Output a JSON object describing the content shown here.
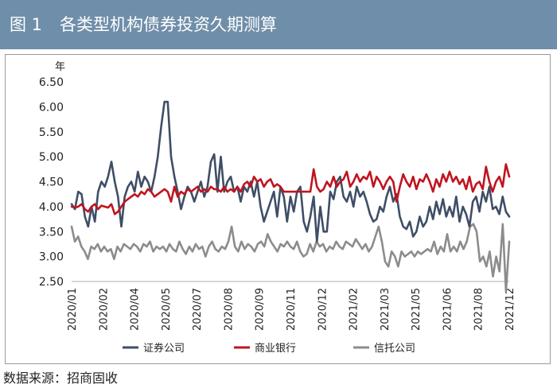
{
  "header": {
    "figure_number": "图 1",
    "title": "各类型机构债券投资久期测算"
  },
  "footer": {
    "source": "数据来源：招商固收"
  },
  "colors": {
    "header_bg": "#6f8ea9",
    "series_securities": "#3f4e66",
    "series_bank": "#c0141f",
    "series_trust": "#8c8c8c"
  },
  "chart_data": {
    "type": "line",
    "title": "各类型机构债券投资久期测算",
    "ylabel": "年",
    "ylim": [
      2.5,
      6.5
    ],
    "yticks": [
      "6.50",
      "6.00",
      "5.50",
      "5.00",
      "4.50",
      "4.00",
      "3.50",
      "3.00",
      "2.50"
    ],
    "x_ticks": [
      "2020/01",
      "2020/02",
      "2020/04",
      "2020/05",
      "2020/07",
      "2020/08",
      "2020/09",
      "2020/11",
      "2020/12",
      "2021/02",
      "2021/03",
      "2021/05",
      "2021/06",
      "2021/08",
      "2021/12"
    ],
    "legend_position": "bottom",
    "series": [
      {
        "name": "证券公司",
        "color": "#3f4e66",
        "values": [
          4.05,
          3.95,
          4.3,
          4.25,
          3.8,
          3.6,
          4.0,
          3.7,
          4.3,
          4.5,
          4.4,
          4.6,
          4.9,
          4.5,
          4.2,
          3.6,
          4.2,
          4.4,
          4.5,
          4.3,
          4.7,
          4.4,
          4.6,
          4.5,
          4.3,
          4.6,
          5.0,
          5.6,
          6.1,
          6.1,
          5.0,
          4.6,
          4.3,
          3.95,
          4.2,
          4.4,
          4.3,
          4.1,
          4.3,
          4.5,
          4.2,
          4.4,
          4.9,
          5.05,
          4.3,
          5.0,
          4.3,
          4.5,
          4.6,
          4.3,
          4.4,
          4.1,
          4.4,
          4.3,
          4.5,
          4.2,
          4.5,
          4.0,
          3.7,
          3.9,
          4.1,
          4.3,
          3.8,
          4.4,
          4.2,
          3.7,
          4.2,
          3.9,
          4.3,
          4.4,
          3.7,
          3.5,
          3.8,
          4.2,
          3.3,
          4.0,
          3.5,
          3.5,
          4.3,
          4.15,
          4.5,
          4.6,
          4.2,
          4.1,
          4.3,
          4.0,
          4.4,
          4.2,
          4.3,
          4.1,
          3.85,
          3.7,
          3.75,
          4.0,
          3.9,
          4.2,
          4.4,
          4.1,
          4.25,
          3.8,
          3.6,
          3.55,
          3.7,
          3.4,
          3.5,
          3.8,
          3.6,
          3.7,
          4.0,
          3.75,
          4.1,
          3.85,
          4.15,
          3.8,
          4.0,
          3.8,
          4.2,
          3.7,
          4.0,
          3.85,
          3.6,
          4.1,
          4.2,
          3.9,
          4.3,
          4.1,
          4.4,
          3.95,
          4.0,
          3.85,
          4.2,
          3.9,
          3.8
        ]
      },
      {
        "name": "商业银行",
        "color": "#c0141f",
        "values": [
          4.0,
          3.98,
          4.0,
          4.05,
          3.95,
          3.9,
          4.0,
          4.05,
          3.95,
          4.02,
          4.0,
          3.98,
          4.05,
          3.85,
          3.9,
          4.0,
          4.1,
          4.15,
          4.2,
          4.25,
          4.2,
          4.3,
          4.25,
          4.35,
          4.3,
          4.2,
          4.25,
          4.3,
          4.35,
          4.3,
          4.1,
          4.4,
          4.2,
          4.3,
          4.25,
          4.35,
          4.3,
          4.35,
          4.4,
          4.3,
          4.35,
          4.3,
          4.4,
          4.35,
          4.35,
          4.3,
          4.4,
          4.3,
          4.35,
          4.3,
          4.4,
          4.3,
          4.45,
          4.5,
          4.4,
          4.6,
          4.5,
          4.55,
          4.4,
          4.5,
          4.55,
          4.4,
          4.45,
          4.4,
          4.3,
          4.3,
          4.3,
          4.3,
          4.3,
          4.3,
          4.3,
          4.3,
          4.3,
          4.75,
          4.4,
          4.3,
          4.35,
          4.5,
          4.4,
          4.6,
          4.4,
          4.5,
          4.55,
          4.7,
          4.4,
          4.5,
          4.65,
          4.5,
          4.6,
          4.55,
          4.7,
          4.4,
          4.6,
          4.5,
          4.35,
          4.5,
          4.6,
          4.5,
          4.1,
          4.4,
          4.65,
          4.5,
          4.4,
          4.6,
          4.35,
          4.55,
          4.5,
          4.65,
          4.5,
          4.3,
          4.55,
          4.4,
          4.65,
          4.5,
          4.7,
          4.5,
          4.6,
          4.45,
          4.55,
          4.35,
          4.6,
          4.3,
          4.45,
          4.5,
          4.35,
          4.8,
          4.5,
          4.3,
          4.5,
          4.6,
          4.4,
          4.85,
          4.6
        ]
      },
      {
        "name": "信托公司",
        "color": "#8c8c8c",
        "values": [
          3.6,
          3.3,
          3.4,
          3.2,
          3.1,
          2.95,
          3.2,
          3.15,
          3.25,
          3.1,
          3.2,
          3.1,
          3.15,
          2.95,
          3.2,
          3.1,
          3.25,
          3.2,
          3.15,
          3.25,
          3.2,
          3.1,
          3.25,
          3.2,
          3.3,
          3.1,
          3.2,
          3.15,
          3.2,
          3.1,
          3.25,
          3.15,
          3.1,
          3.3,
          3.15,
          3.05,
          3.2,
          3.1,
          3.25,
          3.15,
          3.2,
          3.0,
          3.2,
          3.3,
          3.15,
          3.1,
          3.2,
          3.15,
          3.3,
          3.6,
          3.2,
          3.1,
          3.3,
          3.15,
          3.25,
          3.2,
          3.1,
          3.25,
          3.3,
          3.2,
          3.45,
          3.3,
          3.2,
          3.1,
          3.25,
          3.2,
          3.3,
          3.2,
          3.15,
          3.3,
          3.1,
          3.0,
          3.05,
          3.25,
          3.1,
          3.3,
          3.2,
          3.25,
          3.1,
          3.2,
          3.15,
          3.3,
          3.2,
          3.15,
          3.3,
          3.25,
          3.2,
          3.35,
          3.25,
          3.15,
          3.25,
          3.1,
          3.2,
          3.4,
          3.6,
          3.3,
          2.9,
          2.8,
          3.1,
          3.0,
          2.8,
          3.1,
          3.0,
          3.05,
          3.1,
          3.0,
          3.1,
          3.05,
          3.1,
          3.15,
          3.1,
          3.3,
          3.05,
          3.2,
          3.1,
          3.45,
          3.1,
          3.2,
          3.1,
          3.3,
          3.15,
          3.3,
          3.6,
          3.65,
          3.5,
          2.9,
          3.0,
          2.8,
          3.1,
          2.6,
          3.0,
          2.7,
          3.65,
          2.3,
          3.3
        ]
      }
    ]
  }
}
